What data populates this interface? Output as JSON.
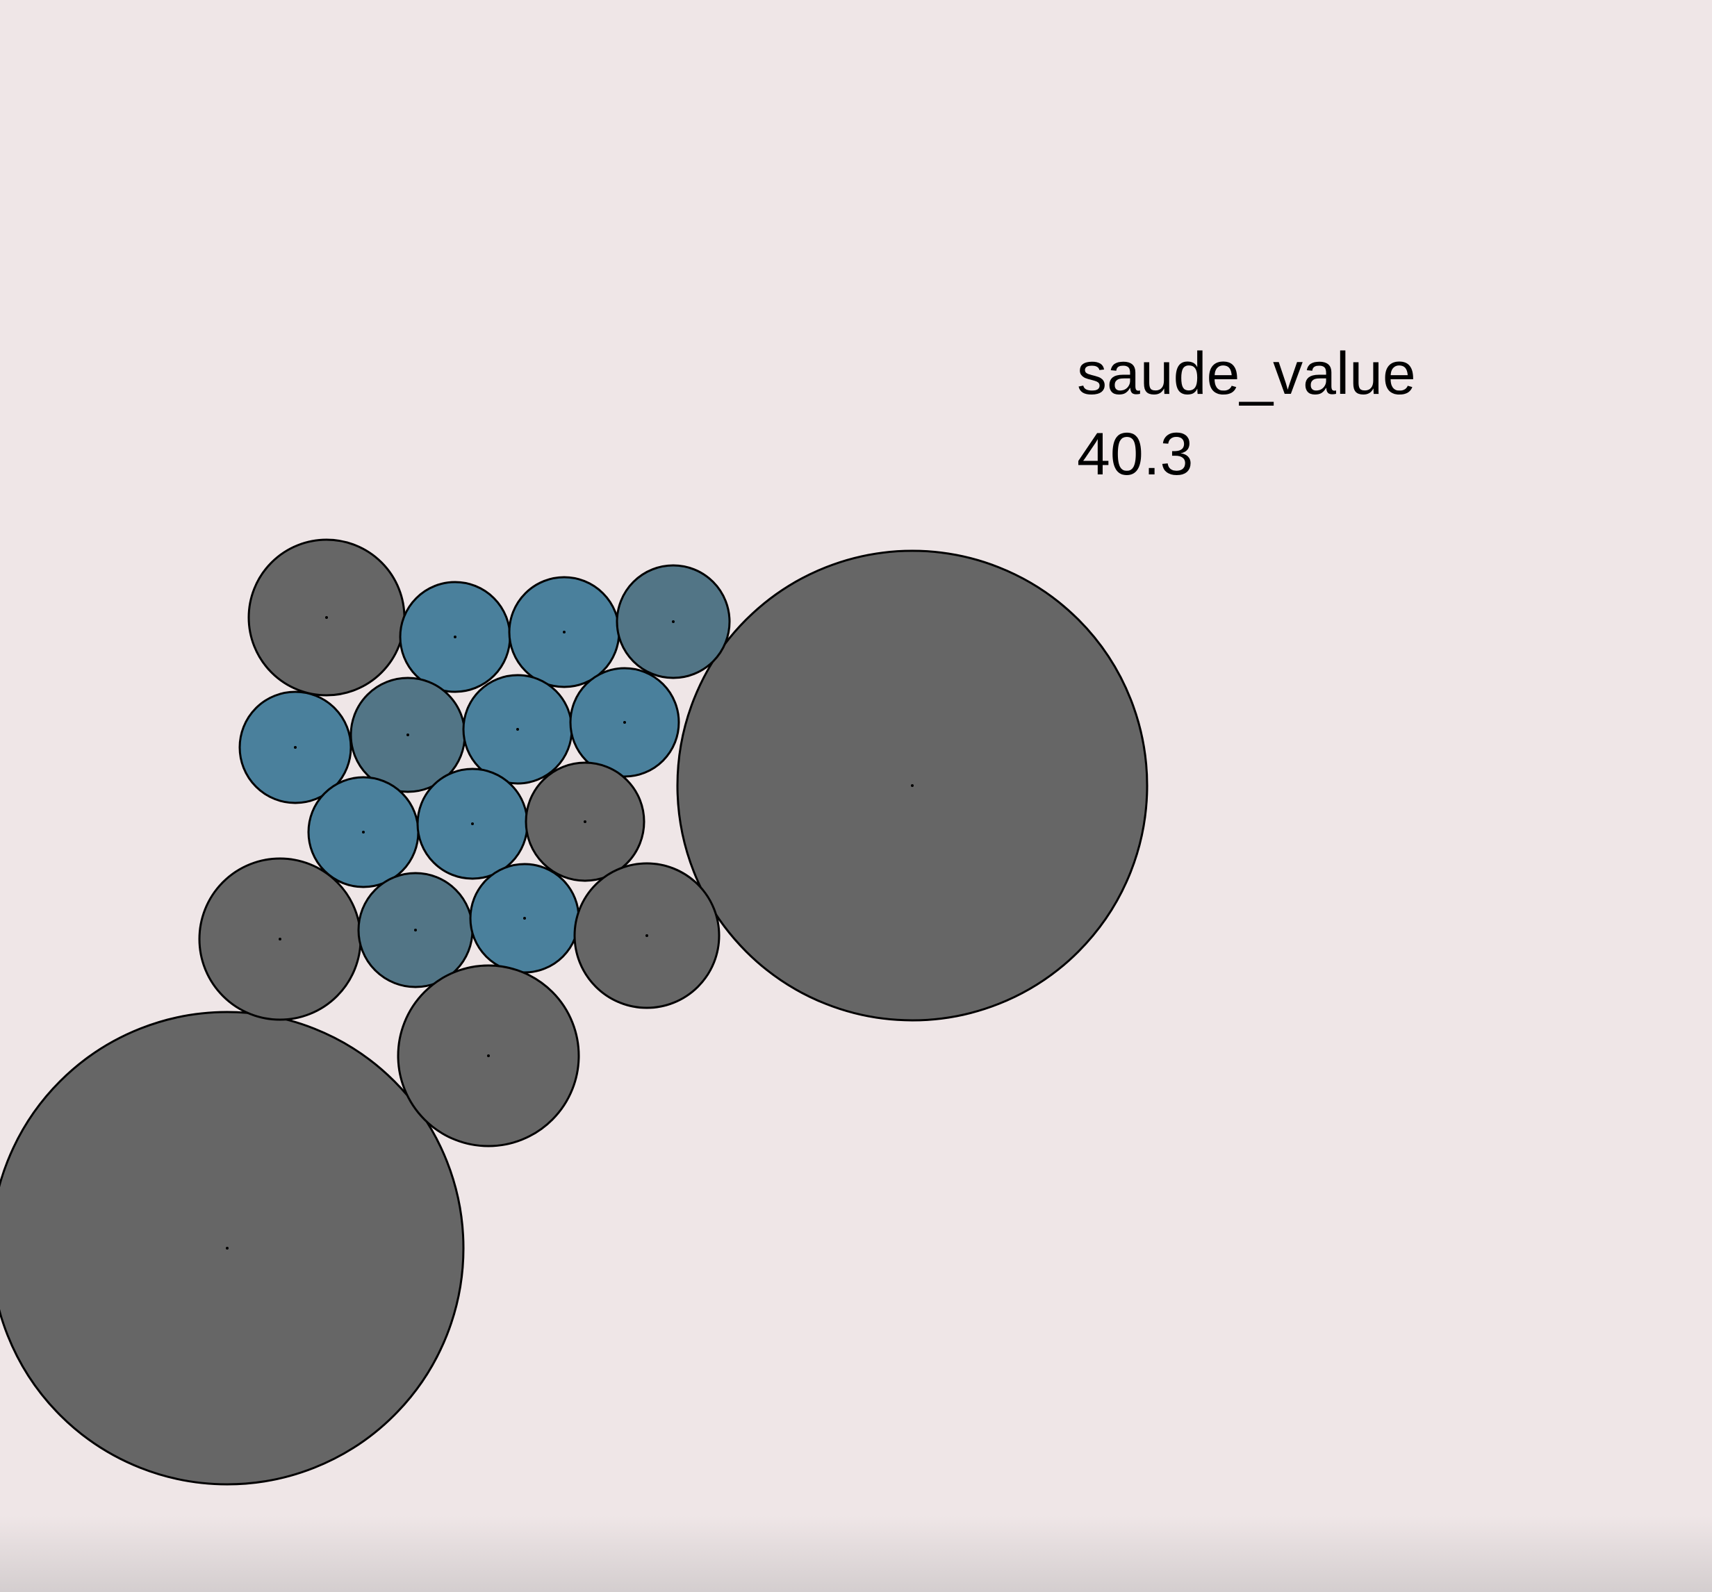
{
  "tooltip": {
    "label": "saude_value",
    "value": "40.3"
  },
  "colors": {
    "background": "#efe6e7",
    "grey": "#666666",
    "blue": "#4a809c",
    "slate": "#527586",
    "stroke": "#000000"
  },
  "chart_data": {
    "type": "bubble",
    "highlighted_value": 40.3,
    "bubbles": [
      {
        "fill": "grey"
      },
      {
        "fill": "grey"
      },
      {
        "fill": "grey"
      },
      {
        "fill": "blue"
      },
      {
        "fill": "blue"
      },
      {
        "fill": "slate"
      },
      {
        "fill": "blue"
      },
      {
        "fill": "slate"
      },
      {
        "fill": "blue"
      },
      {
        "fill": "blue"
      },
      {
        "fill": "blue"
      },
      {
        "fill": "blue"
      },
      {
        "fill": "grey"
      },
      {
        "fill": "grey"
      },
      {
        "fill": "slate"
      },
      {
        "fill": "blue"
      },
      {
        "fill": "grey"
      },
      {
        "fill": "grey"
      }
    ]
  }
}
